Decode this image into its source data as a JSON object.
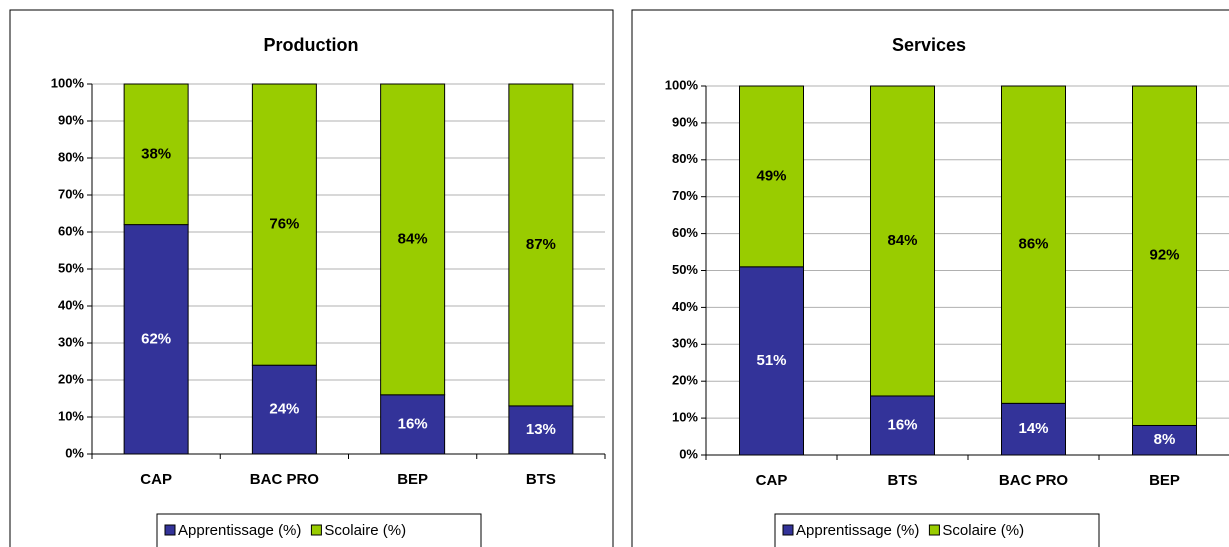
{
  "chart_data": [
    {
      "type": "bar",
      "stacked": true,
      "title": "Production",
      "categories": [
        "CAP",
        "BAC PRO",
        "BEP",
        "BTS"
      ],
      "series": [
        {
          "name": "Apprentissage (%)",
          "color": "#333399",
          "values": [
            62,
            24,
            16,
            13
          ],
          "value_labels": [
            "62%",
            "24%",
            "16%",
            "13%"
          ]
        },
        {
          "name": "Scolaire (%)",
          "color": "#99cc00",
          "values": [
            38,
            76,
            84,
            87
          ],
          "value_labels": [
            "38%",
            "76%",
            "84%",
            "87%"
          ]
        }
      ],
      "ylim": [
        0,
        100
      ],
      "yticks": [
        {
          "value": 0,
          "label": "0%"
        },
        {
          "value": 10,
          "label": "10%"
        },
        {
          "value": 20,
          "label": "20%"
        },
        {
          "value": 30,
          "label": "30%"
        },
        {
          "value": 40,
          "label": "40%"
        },
        {
          "value": 50,
          "label": "50%"
        },
        {
          "value": 60,
          "label": "60%"
        },
        {
          "value": 70,
          "label": "70%"
        },
        {
          "value": 80,
          "label": "80%"
        },
        {
          "value": 90,
          "label": "90%"
        },
        {
          "value": 100,
          "label": "100%"
        }
      ],
      "grid": true,
      "legend": "bottom"
    },
    {
      "type": "bar",
      "stacked": true,
      "title": "Services",
      "categories": [
        "CAP",
        "BTS",
        "BAC PRO",
        "BEP"
      ],
      "series": [
        {
          "name": "Apprentissage (%)",
          "color": "#333399",
          "values": [
            51,
            16,
            14,
            8
          ],
          "value_labels": [
            "51%",
            "16%",
            "14%",
            "8%"
          ]
        },
        {
          "name": "Scolaire (%)",
          "color": "#99cc00",
          "values": [
            49,
            84,
            86,
            92
          ],
          "value_labels": [
            "49%",
            "84%",
            "86%",
            "92%"
          ]
        }
      ],
      "ylim": [
        0,
        100
      ],
      "yticks": [
        {
          "value": 0,
          "label": "0%"
        },
        {
          "value": 10,
          "label": "10%"
        },
        {
          "value": 20,
          "label": "20%"
        },
        {
          "value": 30,
          "label": "30%"
        },
        {
          "value": 40,
          "label": "40%"
        },
        {
          "value": 50,
          "label": "50%"
        },
        {
          "value": 60,
          "label": "60%"
        },
        {
          "value": 70,
          "label": "70%"
        },
        {
          "value": 80,
          "label": "80%"
        },
        {
          "value": 90,
          "label": "90%"
        },
        {
          "value": 100,
          "label": "100%"
        }
      ],
      "grid": true,
      "legend": "bottom"
    }
  ]
}
